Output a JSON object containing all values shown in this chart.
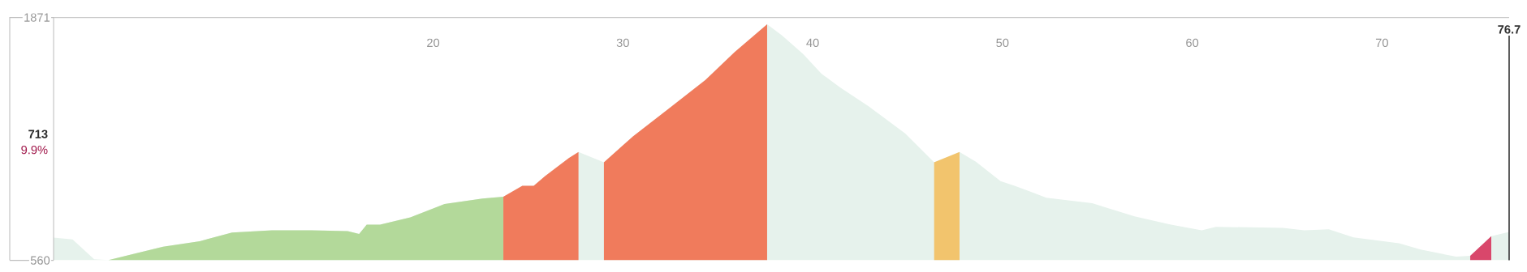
{
  "chart_data": {
    "type": "area",
    "annotations": [
      "713",
      "9.9%"
    ],
    "xlim": [
      0,
      76.7
    ],
    "ylim": [
      560,
      1871
    ],
    "xticks": [
      20,
      30,
      40,
      50,
      60,
      70
    ],
    "yticks": [
      560,
      1871
    ],
    "ref_lines": [
      {
        "axis": "x",
        "value": 76.7,
        "label": "76.7",
        "color": "#333333"
      }
    ],
    "series": [
      {
        "color": "#e6f2ec",
        "x": [
          0,
          1.0,
          2.14,
          2.9,
          4.24,
          5.77,
          7.7,
          9.4,
          11.5,
          13.6,
          15.5,
          16.1,
          16.5,
          17.2,
          18.8,
          20.6,
          22.6,
          23.7,
          24.7,
          25.3,
          25.9,
          27.15,
          27.66,
          29.0,
          30.53,
          32.44,
          34.35,
          35.88,
          37.6,
          38.37,
          39.5,
          40.47,
          41.43,
          42.96,
          44.87,
          46.4,
          47.74,
          48.6,
          49.9,
          50.64,
          52.31,
          54.73,
          56.96,
          58.83,
          60.5,
          61.25,
          64.78,
          65.9,
          67.2,
          68.5,
          70.9,
          72.04,
          73.9,
          74.65,
          75.76,
          76.7
        ],
        "values": [
          683,
          673,
          566,
          562,
          595,
          634,
          663,
          710,
          722,
          722,
          718,
          702,
          753,
          753,
          792,
          864,
          894,
          903,
          962,
          962,
          1015,
          1112,
          1145,
          1089,
          1229,
          1381,
          1534,
          1684,
          1834,
          1775,
          1674,
          1567,
          1494,
          1391,
          1245,
          1089,
          1145,
          1092,
          988,
          963,
          898,
          868,
          798,
          754,
          722,
          741,
          735,
          722,
          728,
          684,
          652,
          618,
          580,
          584,
          690,
          713
        ]
      },
      {
        "color": "#b3d99a",
        "x": [
          2.9,
          4.24,
          5.77,
          7.7,
          9.4,
          11.5,
          13.6,
          15.5,
          16.1,
          16.5,
          17.2,
          18.8,
          20.6,
          22.6,
          23.7
        ],
        "values": [
          562,
          595,
          634,
          663,
          710,
          722,
          722,
          718,
          702,
          753,
          753,
          792,
          864,
          894,
          903
        ]
      },
      {
        "color": "#f07b5c",
        "x": [
          23.7,
          24.7,
          25.3,
          25.9,
          27.15,
          27.66
        ],
        "values": [
          903,
          962,
          962,
          1015,
          1112,
          1145
        ]
      },
      {
        "color": "#f07b5c",
        "x": [
          29.0,
          30.53,
          32.44,
          34.35,
          35.88,
          37.6
        ],
        "values": [
          1089,
          1229,
          1381,
          1534,
          1684,
          1834
        ]
      },
      {
        "color": "#f2c46d",
        "x": [
          46.4,
          47.74
        ],
        "values": [
          1089,
          1145
        ]
      },
      {
        "color": "#d9476b",
        "x": [
          74.65,
          75.76
        ],
        "values": [
          584,
          690
        ]
      }
    ]
  }
}
